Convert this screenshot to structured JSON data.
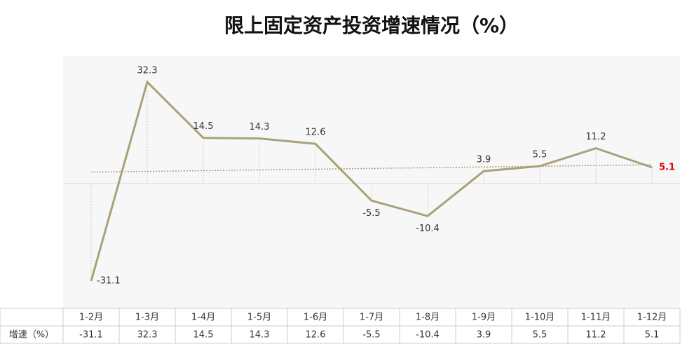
{
  "chart_data": {
    "type": "line",
    "title": "限上固定资产投资增速情况（%）",
    "categories": [
      "1-2月",
      "1-3月",
      "1-4月",
      "1-5月",
      "1-6月",
      "1-7月",
      "1-8月",
      "1-9月",
      "1-10月",
      "1-11月",
      "1-12月"
    ],
    "series": [
      {
        "name": "增速（%）",
        "color": "#a9a17a",
        "values": [
          -31.1,
          32.3,
          14.5,
          14.3,
          12.6,
          -5.5,
          -10.4,
          3.9,
          5.5,
          11.2,
          5.1
        ]
      }
    ],
    "trendline": true,
    "trendline_color": "#a9a17a",
    "last_label_color": "#e00000"
  }
}
